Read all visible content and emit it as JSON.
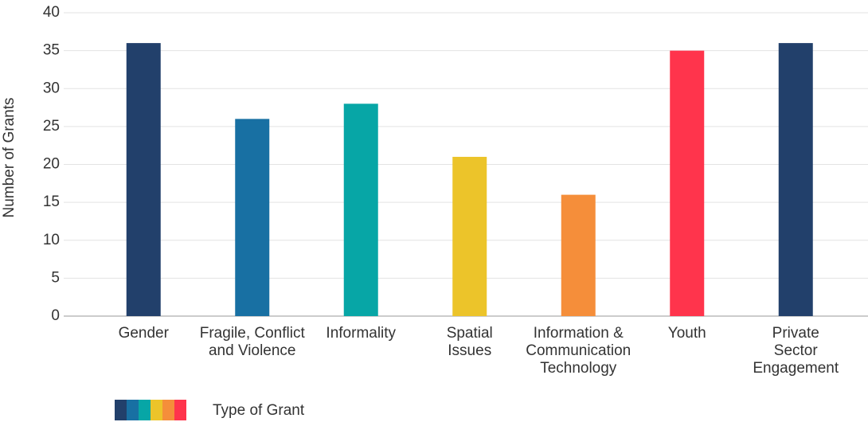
{
  "chart_data": {
    "type": "bar",
    "y_label": "Number of Grants",
    "categories": [
      "Gender",
      "Fragile, Conflict and Violence",
      "Informality",
      "Spatial Issues",
      "Information & Communication Technology",
      "Youth",
      "Private Sector Engagement"
    ],
    "values": [
      36,
      26,
      28,
      21,
      16,
      35,
      36
    ],
    "colors": [
      "#22406b",
      "#1870a3",
      "#07a6a6",
      "#ecc42a",
      "#f58e3a",
      "#ff344c",
      "#22406b"
    ],
    "ylim": [
      0,
      40
    ],
    "yticks": [
      0,
      5,
      10,
      15,
      20,
      25,
      30,
      35,
      40
    ],
    "grid": true,
    "legend_title": "Type of Grant"
  }
}
